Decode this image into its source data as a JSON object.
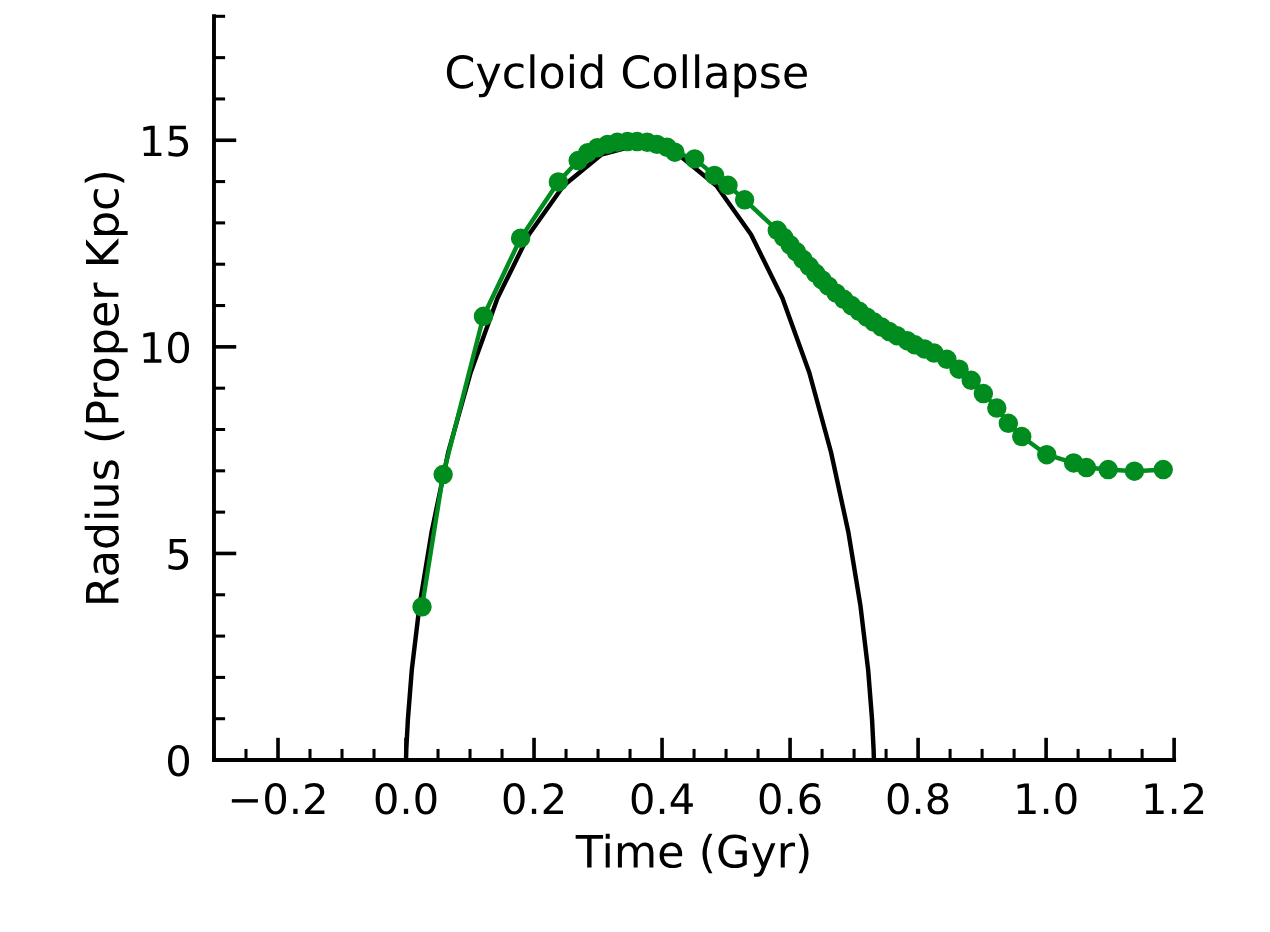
{
  "chart_data": {
    "type": "line",
    "title": "Cycloid Collapse",
    "xlabel": "Time (Gyr)",
    "ylabel": "Radius (Proper Kpc)",
    "xlim": [
      -0.3,
      1.2
    ],
    "xticks": [
      {
        "value": -0.2,
        "label": "−0.2"
      },
      {
        "value": 0.0,
        "label": "0.0"
      },
      {
        "value": 0.2,
        "label": "0.2"
      },
      {
        "value": 0.4,
        "label": "0.4"
      },
      {
        "value": 0.6,
        "label": "0.6"
      },
      {
        "value": 0.8,
        "label": "0.8"
      },
      {
        "value": 1.0,
        "label": "1.0"
      },
      {
        "value": 1.2,
        "label": "1.2"
      }
    ],
    "ylim": [
      0,
      18
    ],
    "yticks": [
      0,
      5,
      10,
      15
    ],
    "grid": false,
    "series": [
      {
        "color": "#000000",
        "marker": "none",
        "line_style": "solid",
        "x": [
          0,
          0.0004,
          0.003,
          0.009,
          0.021,
          0.04,
          0.066,
          0.101,
          0.143,
          0.192,
          0.246,
          0.305,
          0.365,
          0.426,
          0.485,
          0.539,
          0.588,
          0.63,
          0.664,
          0.691,
          0.71,
          0.722,
          0.728,
          0.7305,
          0.731
        ],
        "values": [
          0,
          0.25,
          1.0,
          2.18,
          3.73,
          5.52,
          7.45,
          9.38,
          11.18,
          12.72,
          13.9,
          14.65,
          14.9,
          14.65,
          13.9,
          12.72,
          11.18,
          9.38,
          7.45,
          5.52,
          3.73,
          2.18,
          1.0,
          0.25,
          0
        ]
      },
      {
        "color": "#008c1e",
        "marker": "circle",
        "line_style": "solid",
        "x": [
          0.025,
          0.058,
          0.121,
          0.179,
          0.238,
          0.269,
          0.284,
          0.299,
          0.315,
          0.33,
          0.346,
          0.361,
          0.377,
          0.392,
          0.408,
          0.42,
          0.451,
          0.482,
          0.503,
          0.529,
          0.58,
          0.59,
          0.6,
          0.61,
          0.62,
          0.63,
          0.64,
          0.65,
          0.66,
          0.672,
          0.684,
          0.696,
          0.708,
          0.72,
          0.731,
          0.743,
          0.755,
          0.767,
          0.783,
          0.795,
          0.81,
          0.825,
          0.845,
          0.864,
          0.883,
          0.902,
          0.923,
          0.941,
          0.962,
          1.001,
          1.043,
          1.063,
          1.097,
          1.138,
          1.183
        ],
        "values": [
          3.71,
          6.91,
          10.74,
          12.63,
          13.99,
          14.51,
          14.7,
          14.82,
          14.9,
          14.95,
          14.97,
          14.97,
          14.95,
          14.9,
          14.83,
          14.71,
          14.55,
          14.15,
          13.91,
          13.56,
          12.82,
          12.65,
          12.47,
          12.3,
          12.12,
          11.95,
          11.78,
          11.62,
          11.47,
          11.3,
          11.15,
          11.0,
          10.86,
          10.72,
          10.6,
          10.48,
          10.37,
          10.27,
          10.15,
          10.05,
          9.95,
          9.85,
          9.7,
          9.46,
          9.19,
          8.87,
          8.52,
          8.15,
          7.83,
          7.39,
          7.19,
          7.08,
          7.03,
          6.99,
          7.03
        ]
      }
    ]
  }
}
